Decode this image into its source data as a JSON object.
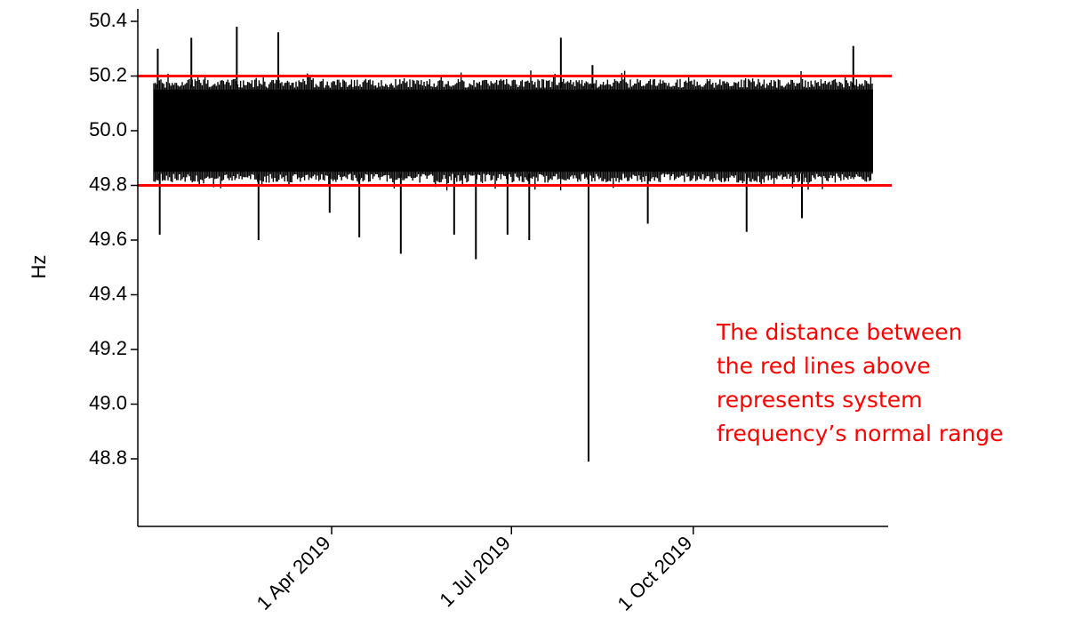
{
  "chart_data": {
    "type": "line",
    "title": "",
    "xlabel": "",
    "ylabel": "Hz",
    "ylim": [
      48.5,
      50.45
    ],
    "xlim": [
      "2019-01-01",
      "2019-12-31"
    ],
    "y_ticks": [
      50.4,
      50.2,
      50.0,
      49.8,
      49.6,
      49.4,
      49.2,
      49.0,
      48.8
    ],
    "y_tick_labels": [
      "50.4",
      "50.2",
      "50.0",
      "49.8",
      "49.6",
      "49.4",
      "49.2",
      "49.0",
      "48.8"
    ],
    "x_ticks": [
      "2019-04-01",
      "2019-07-01",
      "2019-10-01"
    ],
    "x_tick_labels": [
      "1 Apr 2019",
      "1 Jul 2019",
      "1 Oct 2019"
    ],
    "grid": false,
    "series": [
      {
        "color": "#000000",
        "band": {
          "low": 49.83,
          "high": 50.17
        },
        "spikes": [
          {
            "x": "2019-01-03",
            "y": 50.3
          },
          {
            "x": "2019-01-04",
            "y": 49.62
          },
          {
            "x": "2019-01-20",
            "y": 50.34
          },
          {
            "x": "2019-02-12",
            "y": 50.38
          },
          {
            "x": "2019-02-23",
            "y": 49.6
          },
          {
            "x": "2019-03-05",
            "y": 50.36
          },
          {
            "x": "2019-03-31",
            "y": 49.7
          },
          {
            "x": "2019-04-15",
            "y": 49.61
          },
          {
            "x": "2019-05-06",
            "y": 49.55
          },
          {
            "x": "2019-06-02",
            "y": 49.62
          },
          {
            "x": "2019-06-13",
            "y": 49.53
          },
          {
            "x": "2019-06-29",
            "y": 49.62
          },
          {
            "x": "2019-07-10",
            "y": 49.6
          },
          {
            "x": "2019-07-26",
            "y": 50.34
          },
          {
            "x": "2019-08-09",
            "y": 48.79
          },
          {
            "x": "2019-08-11",
            "y": 50.24
          },
          {
            "x": "2019-09-08",
            "y": 49.66
          },
          {
            "x": "2019-10-28",
            "y": 49.63
          },
          {
            "x": "2019-11-25",
            "y": 49.68
          },
          {
            "x": "2019-12-21",
            "y": 50.31
          }
        ]
      }
    ],
    "reference_lines": [
      {
        "y": 50.2,
        "color": "#ff0000"
      },
      {
        "y": 49.8,
        "color": "#ff0000"
      }
    ],
    "annotation": {
      "lines": [
        "The distance between",
        "the red lines above",
        "represents system",
        "frequency’s normal range"
      ],
      "color": "#ff0000"
    }
  }
}
